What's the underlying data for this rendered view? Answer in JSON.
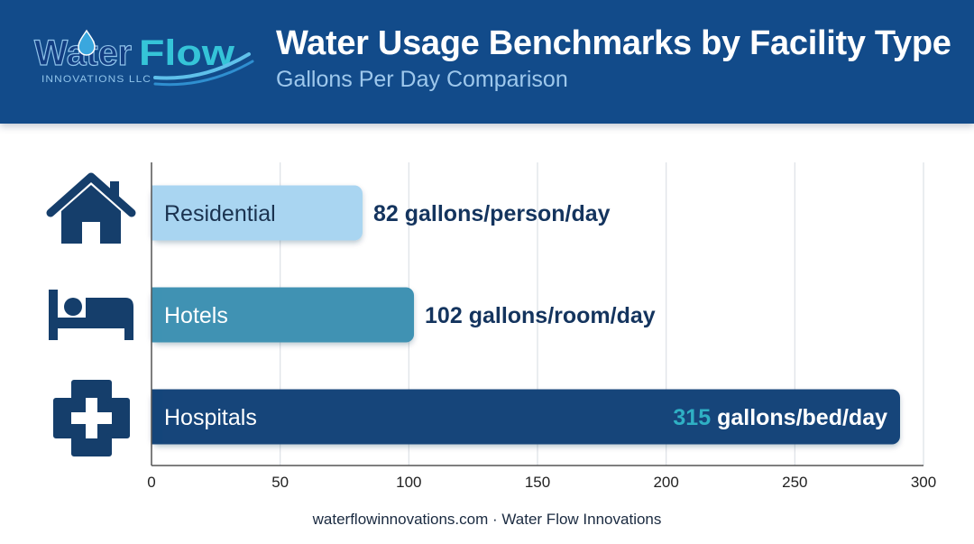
{
  "header": {
    "logo": {
      "word1": "Water",
      "word2": "Flow",
      "tagline": "INNOVATIONS LLC"
    },
    "title": "Water Usage Benchmarks by Facility Type",
    "subtitle": "Gallons Per Day Comparison"
  },
  "chart_data": {
    "type": "bar",
    "orientation": "horizontal",
    "title": "Water Usage Benchmarks by Facility Type",
    "subtitle": "Gallons Per Day Comparison",
    "xlabel": "",
    "ylabel": "",
    "xlim": [
      0,
      300
    ],
    "xticks": [
      0,
      50,
      100,
      150,
      200,
      250,
      300
    ],
    "grid": true,
    "legend": "none",
    "categories": [
      "Residential",
      "Hotels",
      "Hospitals"
    ],
    "values": [
      82,
      102,
      315
    ],
    "value_labels": [
      {
        "number": "82",
        "unit": "gallons/person/day"
      },
      {
        "number": "102",
        "unit": "gallons/room/day"
      },
      {
        "number": "315",
        "unit": "gallons/bed/day"
      }
    ],
    "icons": [
      "house-icon",
      "bed-icon",
      "medical-cross-icon"
    ],
    "colors": {
      "bars": [
        "#a9d5f1",
        "#3f92b3",
        "#14457a"
      ],
      "category_text": [
        "#1b3350",
        "#ffffff",
        "#ffffff"
      ],
      "value_text": "#14345e",
      "value_text_inside": "#ffffff",
      "value_highlight": "#2fb0c4",
      "icons": "#153e6b",
      "grid": "#dde1e6",
      "axis": "#555555"
    }
  },
  "footer": {
    "text": "waterflowinnovations.com · Water Flow Innovations"
  }
}
